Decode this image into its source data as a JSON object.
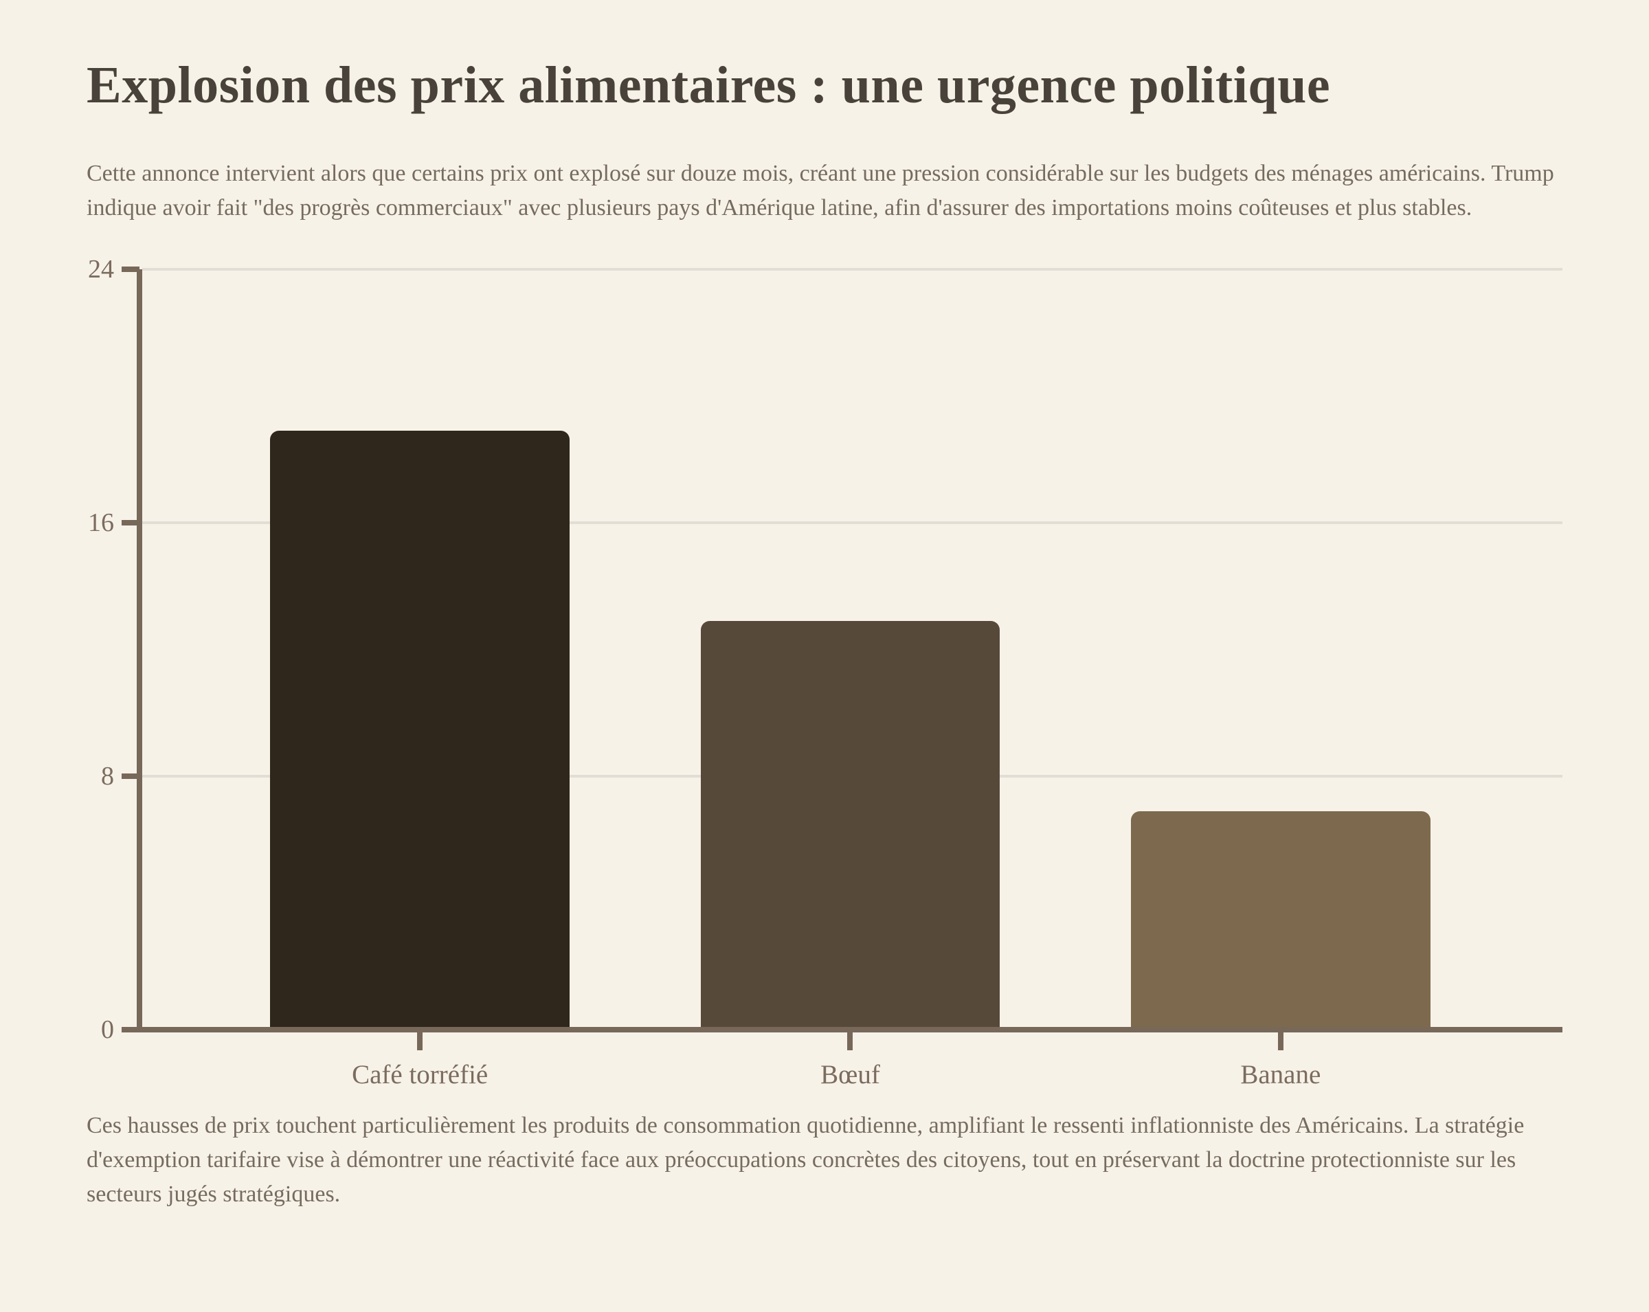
{
  "page": {
    "background": "#f7f2e8",
    "title": "Explosion des prix alimentaires : une urgence politique",
    "intro": "Cette annonce intervient alors que certains prix ont explosé sur douze mois, créant une pression considérable sur les budgets des ménages américains. Trump indique avoir fait \"des progrès commerciaux\" avec plusieurs pays d'Amérique latine, afin d'assurer des importations moins coûteuses et plus stables.",
    "outro": "Ces hausses de prix touchent particulièrement les produits de consommation quotidienne, amplifiant le ressenti inflationniste des Américains. La stratégie d'exemption tarifaire vise à démontrer une réactivité face aux préoccupations concrètes des citoyens, tout en préservant la doctrine protectionniste sur les secteurs jugés stratégiques."
  },
  "chart_data": {
    "type": "bar",
    "title": "",
    "xlabel": "",
    "ylabel": "",
    "categories": [
      "Café torréfié",
      "Bœuf",
      "Banane"
    ],
    "values": [
      18.9,
      12.9,
      6.9
    ],
    "bar_colors": [
      "#2f271c",
      "#57493a",
      "#7d6a4e"
    ],
    "ylim": [
      0,
      24
    ],
    "yticks": [
      0,
      8,
      16,
      24
    ],
    "grid": true,
    "legend": false,
    "axis_color": "#77685a",
    "grid_color": "#e2ded5",
    "tick_label_color": "#7b6c5e"
  }
}
